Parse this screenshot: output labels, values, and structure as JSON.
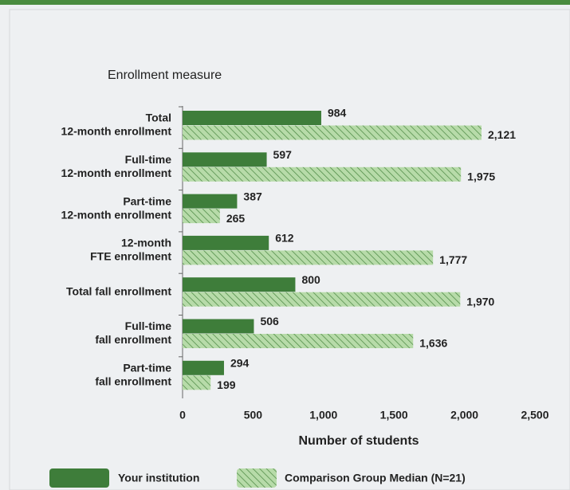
{
  "chart_data": {
    "type": "barh",
    "ytitle": "Enrollment measure",
    "xtitle": "Number of students",
    "categories": [
      [
        "Total",
        "12-month enrollment"
      ],
      [
        "Full-time",
        "12-month enrollment"
      ],
      [
        "Part-time",
        "12-month enrollment"
      ],
      [
        "12-month",
        "FTE enrollment"
      ],
      [
        "Total fall enrollment"
      ],
      [
        "Full-time",
        "fall enrollment"
      ],
      [
        "Part-time",
        "fall enrollment"
      ]
    ],
    "series": [
      {
        "name": "Your institution",
        "color": "#3e7d3a",
        "pattern": "solid",
        "values": [
          984,
          597,
          387,
          612,
          800,
          506,
          294
        ],
        "value_labels": [
          "984",
          "597",
          "387",
          "612",
          "800",
          "506",
          "294"
        ]
      },
      {
        "name": "Comparison Group Median (N=21)",
        "color": "#b7dba9",
        "pattern": "hatch",
        "values": [
          2121,
          1975,
          265,
          1777,
          1970,
          1636,
          199
        ],
        "value_labels": [
          "2,121",
          "1,975",
          "265",
          "1,777",
          "1,970",
          "1,636",
          "199"
        ]
      }
    ],
    "xlim": [
      0,
      2500
    ],
    "xticks": [
      0,
      500,
      {
        "value": 1000,
        "label": "1,000"
      },
      {
        "value": 1500,
        "label": "1,500"
      },
      {
        "value": 2000,
        "label": "2,000"
      },
      {
        "value": 2500,
        "label": "2,500"
      }
    ]
  }
}
